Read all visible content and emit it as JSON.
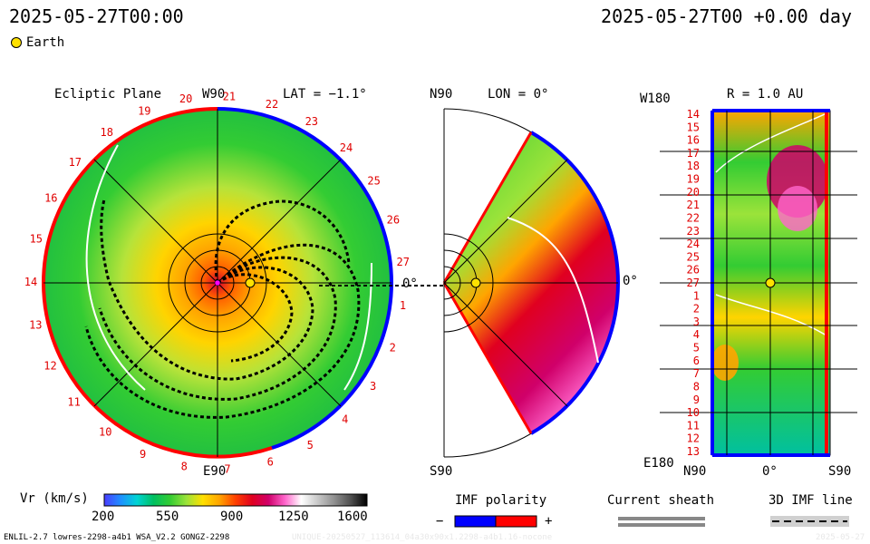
{
  "header": {
    "timestamp_left": "2025-05-27T00:00",
    "timestamp_right": "2025-05-27T00 +0.00 day",
    "legend_earth": "Earth"
  },
  "ecliptic": {
    "title": "Ecliptic Plane",
    "top_label": "W90",
    "bottom_label": "E90",
    "lat_label": "LAT = −1.1°",
    "zero_label": "0°",
    "rotation_labels": [
      "20",
      "21",
      "22",
      "23",
      "24",
      "25",
      "26",
      "27",
      "1",
      "2",
      "3",
      "4",
      "5",
      "6",
      "7",
      "8",
      "9",
      "10",
      "11",
      "12",
      "13",
      "14",
      "15",
      "16",
      "17",
      "18",
      "19"
    ]
  },
  "meridional": {
    "n_label": "N90",
    "s_label": "S90",
    "lon_label": "LON = 0°",
    "zero_label": "0°"
  },
  "map": {
    "top_left_label": "W180",
    "bottom_left_label": "E180",
    "r_label": "R = 1.0 AU",
    "bottom_labels": [
      "N90",
      "0°",
      "S90"
    ],
    "y_labels": [
      "14",
      "15",
      "16",
      "17",
      "18",
      "19",
      "20",
      "21",
      "22",
      "23",
      "24",
      "25",
      "26",
      "27",
      "1",
      "2",
      "3",
      "4",
      "5",
      "6",
      "7",
      "8",
      "9",
      "10",
      "11",
      "12",
      "13"
    ]
  },
  "colorbar": {
    "label": "Vr (km/s)",
    "ticks": [
      "200",
      "550",
      "900",
      "1250",
      "1600"
    ],
    "colors": [
      "#4a3cff",
      "#1e90ff",
      "#00d4d4",
      "#00c060",
      "#33cc33",
      "#9be33a",
      "#ffe000",
      "#ffa500",
      "#ff4000",
      "#e00020",
      "#d0006a",
      "#ff66cc",
      "#ffffff",
      "#c8c8c8",
      "#909090",
      "#505050",
      "#000000"
    ]
  },
  "imf": {
    "label": "IMF polarity",
    "minus": "−",
    "plus": "+",
    "neg_color": "#0000ff",
    "pos_color": "#ff0000"
  },
  "sheath": {
    "label": "Current sheath"
  },
  "imf3d": {
    "label": "3D IMF line"
  },
  "footer": {
    "model_info": "ENLIL-2.7 lowres-2298-a4b1 WSA_V2.2 GONGZ-2298",
    "run_info": "UNIQUE-20250527_113614_04a30x90x1.2298-a4b1.16-nocone",
    "date_right": "2025-05-27"
  }
}
